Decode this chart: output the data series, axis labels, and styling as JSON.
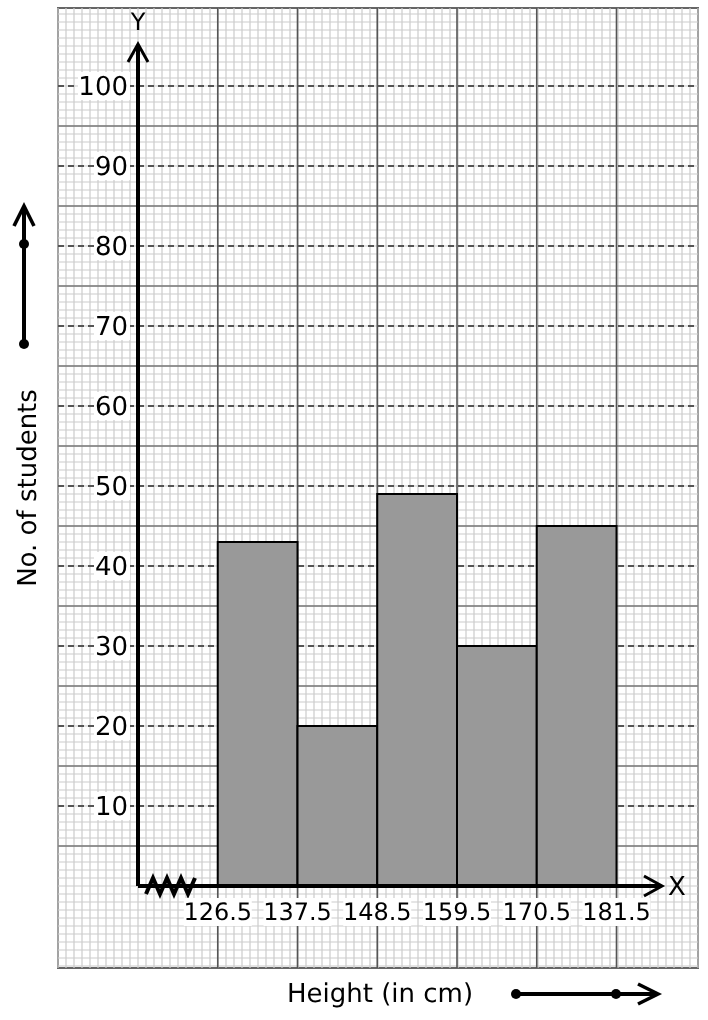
{
  "chart_data": {
    "type": "histogram",
    "xlabel": "Height (in cm)",
    "ylabel": "No. of students",
    "bins": [
      126.5,
      137.5,
      148.5,
      159.5,
      170.5,
      181.5
    ],
    "values": [
      43,
      20,
      49,
      30,
      45
    ],
    "color": "#999999",
    "xlim": [
      115.5,
      187.5
    ],
    "xticks": [
      126.5,
      137.5,
      148.5,
      159.5,
      170.5,
      181.5
    ],
    "ylim": [
      0,
      105
    ],
    "yticks": [
      10,
      20,
      30,
      40,
      50,
      60,
      70,
      80,
      90,
      100
    ],
    "grid": true,
    "annotations": [
      "X",
      "Y"
    ]
  }
}
